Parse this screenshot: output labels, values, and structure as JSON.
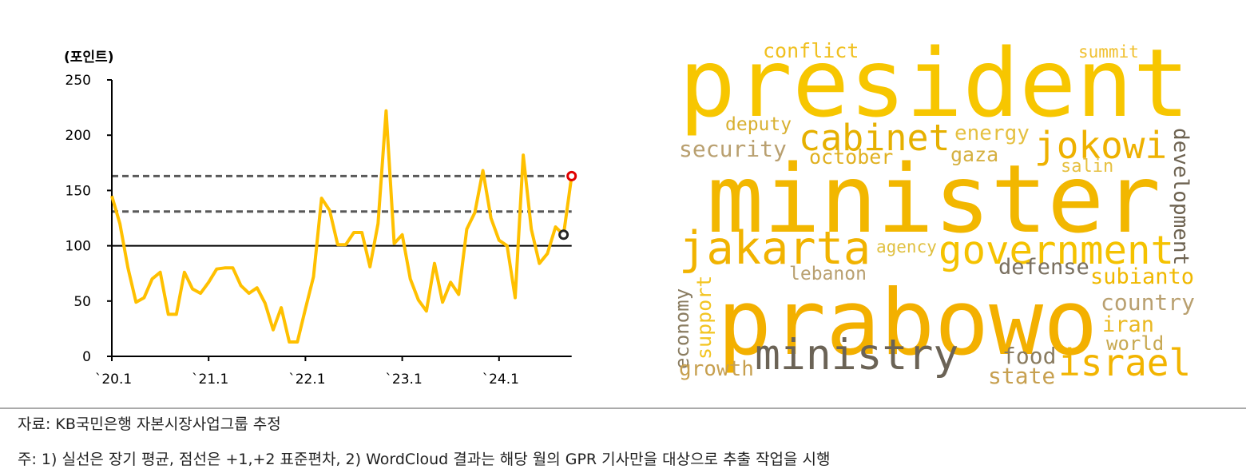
{
  "chart_data": {
    "type": "line",
    "ylabel": "(포인트)",
    "categories": [
      "`20.1",
      null,
      null,
      null,
      null,
      null,
      null,
      null,
      null,
      null,
      null,
      null,
      "`21.1",
      null,
      null,
      null,
      null,
      null,
      null,
      null,
      null,
      null,
      null,
      null,
      "`22.1",
      null,
      null,
      null,
      null,
      null,
      null,
      null,
      null,
      null,
      null,
      null,
      "`23.1",
      null,
      null,
      null,
      null,
      null,
      null,
      null,
      null,
      null,
      null,
      null,
      "`24.1",
      null,
      null,
      null,
      null,
      null,
      null,
      null,
      null,
      null
    ],
    "values": [
      145,
      120,
      80,
      49,
      53,
      70,
      76,
      38,
      38,
      76,
      61,
      57,
      67,
      79,
      80,
      80,
      64,
      57,
      62,
      48,
      24,
      44,
      13,
      13,
      43,
      72,
      143,
      132,
      101,
      101,
      112,
      112,
      81,
      120,
      222,
      102,
      110,
      70,
      51,
      41,
      84,
      49,
      67,
      56,
      115,
      130,
      168,
      125,
      105,
      100,
      53,
      182,
      115,
      84,
      93,
      117,
      110,
      163
    ],
    "color": "#ffc000",
    "ylim": [
      0,
      250
    ],
    "yticks": [
      0,
      50,
      100,
      150,
      200,
      250
    ],
    "reference_lines": [
      {
        "value": 100,
        "style": "solid",
        "color": "#000000"
      },
      {
        "value": 131,
        "style": "dashed",
        "color": "#595959"
      },
      {
        "value": 163,
        "style": "dashed",
        "color": "#595959"
      }
    ],
    "highlight": [
      {
        "index": 56,
        "color": "#262626"
      },
      {
        "index": 57,
        "color": "#e00000"
      }
    ]
  },
  "wordcloud": {
    "words": [
      {
        "text": "president",
        "color": "#f7c600"
      },
      {
        "text": "minister",
        "color": "#f2b700"
      },
      {
        "text": "prabowo",
        "color": "#f3b000"
      },
      {
        "text": "jakarta",
        "color": "#f1b300"
      },
      {
        "text": "government",
        "color": "#f5c200"
      },
      {
        "text": "cabinet",
        "color": "#e6b000"
      },
      {
        "text": "jokowi",
        "color": "#eeb100"
      },
      {
        "text": "ministry",
        "color": "#6b6356"
      },
      {
        "text": "israel",
        "color": "#f2b400"
      },
      {
        "text": "conflict",
        "color": "#f0c020"
      },
      {
        "text": "summit",
        "color": "#f0c030"
      },
      {
        "text": "deputy",
        "color": "#d8b030"
      },
      {
        "text": "security",
        "color": "#b9a070"
      },
      {
        "text": "energy",
        "color": "#e5c040"
      },
      {
        "text": "october",
        "color": "#e0b020"
      },
      {
        "text": "gaza",
        "color": "#d5b040"
      },
      {
        "text": "salin",
        "color": "#e6c040"
      },
      {
        "text": "development",
        "color": "#6d6250"
      },
      {
        "text": "agency",
        "color": "#e0c040"
      },
      {
        "text": "lebanon",
        "color": "#b9a070"
      },
      {
        "text": "defense",
        "color": "#7a7060"
      },
      {
        "text": "subianto",
        "color": "#f0b800"
      },
      {
        "text": "support",
        "color": "#f3c420"
      },
      {
        "text": "economy",
        "color": "#8a7c60"
      },
      {
        "text": "country",
        "color": "#b9a070"
      },
      {
        "text": "iran",
        "color": "#eab820"
      },
      {
        "text": "world",
        "color": "#c7a850"
      },
      {
        "text": "food",
        "color": "#8a7c60"
      },
      {
        "text": "growth",
        "color": "#c7a050"
      },
      {
        "text": "state",
        "color": "#c7a050"
      }
    ]
  },
  "footer": {
    "source": "자료: KB국민은행 자본시장사업그룹 추정",
    "note": "주: 1) 실선은 장기 평균, 점선은 +1,+2 표준편차, 2) WordCloud 결과는 해당 월의 GPR 기사만을 대상으로 추출 작업을 시행"
  }
}
